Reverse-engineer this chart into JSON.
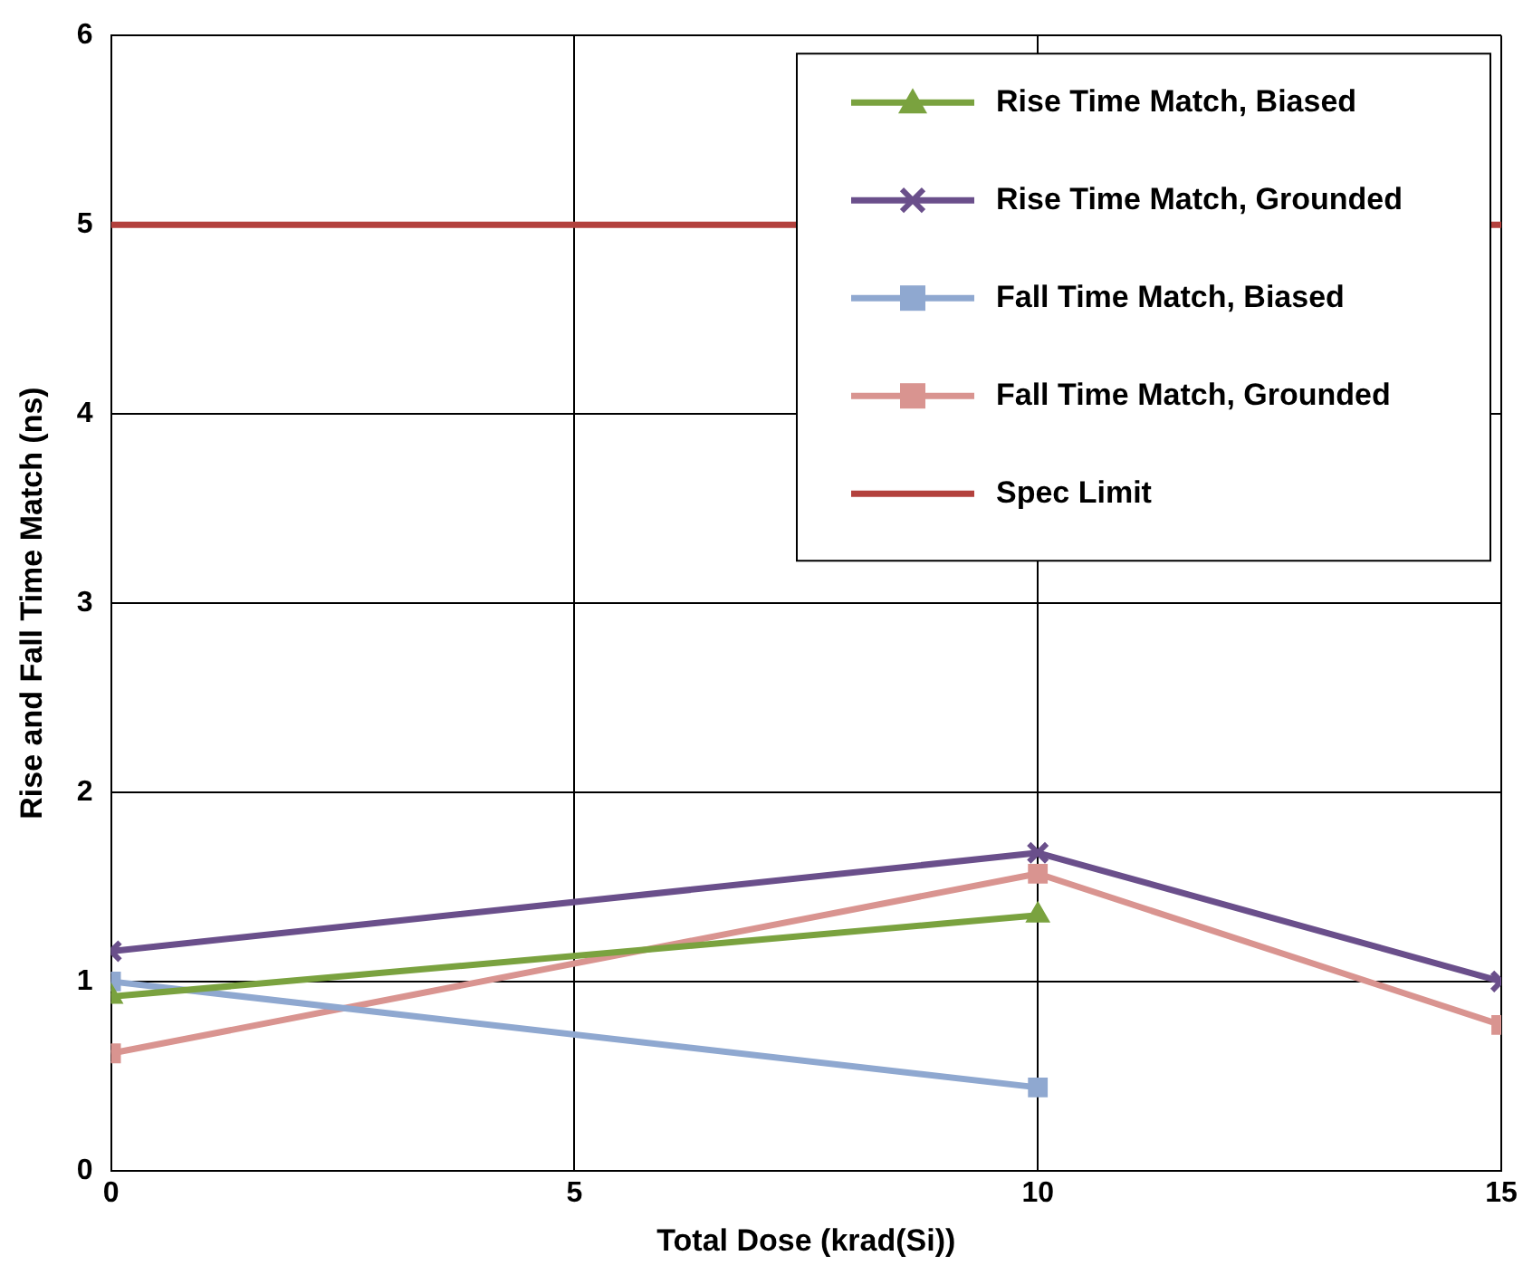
{
  "chart_data": {
    "type": "line",
    "xlabel": "Total Dose (krad(Si))",
    "ylabel": "Rise and Fall Time Match (ns)",
    "xlim": [
      0,
      15
    ],
    "xticks": [
      0,
      5,
      10,
      15
    ],
    "ylim": [
      0,
      6
    ],
    "yticks": [
      0,
      1,
      2,
      3,
      4,
      5,
      6
    ],
    "grid": true,
    "legend": "top right",
    "line_style": "solid",
    "series": [
      {
        "name": "Rise Time Match, Biased",
        "color": "#7aa23f",
        "marker": "triangle",
        "x": [
          0,
          10
        ],
        "values": [
          0.92,
          1.35
        ]
      },
      {
        "name": "Rise Time Match, Grounded",
        "color": "#6a4f8b",
        "marker": "cross",
        "x": [
          0,
          10,
          15
        ],
        "values": [
          1.16,
          1.68,
          1.0
        ]
      },
      {
        "name": "Fall Time Match, Biased",
        "color": "#8fa8d0",
        "marker": "square",
        "x": [
          0,
          10
        ],
        "values": [
          1.0,
          0.44
        ]
      },
      {
        "name": "Fall Time Match, Grounded",
        "color": "#d99490",
        "marker": "square",
        "x": [
          0,
          10,
          15
        ],
        "values": [
          0.62,
          1.57,
          0.77
        ]
      },
      {
        "name": "Spec Limit",
        "color": "#b3413d",
        "marker": "none",
        "x": [
          0,
          15
        ],
        "values": [
          5,
          5
        ]
      }
    ]
  }
}
